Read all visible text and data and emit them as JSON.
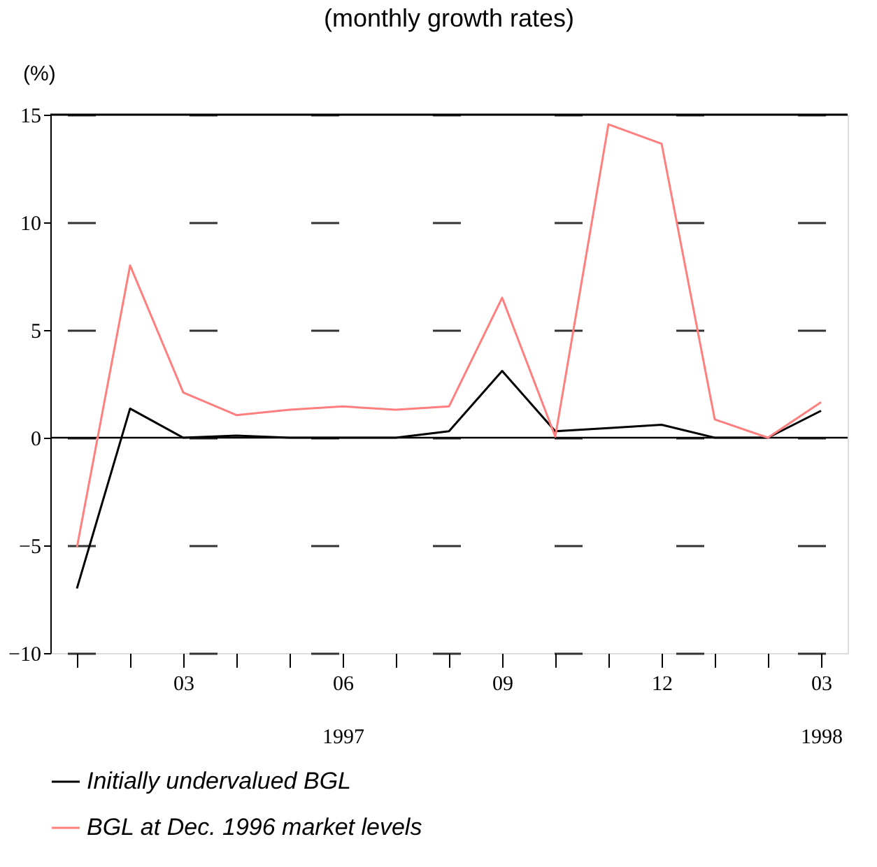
{
  "chart_data": {
    "type": "line",
    "title": "(monthly growth rates)",
    "ylabel": "(%)",
    "categories": [
      null,
      null,
      "03",
      null,
      null,
      "06\n1997",
      null,
      null,
      "09",
      null,
      null,
      "12",
      null,
      null,
      "03\n1998"
    ],
    "series": [
      {
        "name": "Initially undervalued BGL",
        "color": "#000000",
        "values": [
          -7,
          1.35,
          0,
          0.1,
          0,
          0,
          0,
          0.3,
          3.1,
          0.3,
          0.45,
          0.6,
          0,
          0,
          1.25
        ]
      },
      {
        "name": "BGL at Dec. 1996 market levels",
        "color": "#ff7f7f",
        "values": [
          -5.1,
          8.0,
          2.1,
          1.05,
          1.3,
          1.45,
          1.3,
          1.45,
          6.5,
          0.05,
          14.55,
          13.65,
          0.85,
          0,
          1.65
        ]
      }
    ],
    "ylim": [
      -10,
      15
    ],
    "yticks": [
      -10,
      -5,
      0,
      5,
      10,
      15
    ],
    "grid": "y",
    "legend": "bottom",
    "ref_lines": [
      {
        "axis": "y",
        "value": 0
      }
    ]
  }
}
